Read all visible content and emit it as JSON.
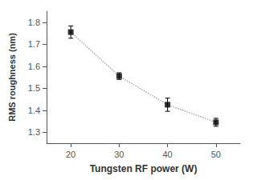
{
  "chart_data": {
    "type": "line",
    "xlabel": "Tungsten RF power (W)",
    "ylabel": "RMS roughness (nm)",
    "x": [
      20,
      30,
      40,
      50
    ],
    "series": [
      {
        "type": "line",
        "color": "#aaaaaa",
        "line_style": "dotted",
        "marker": "none",
        "values": [
          1.755,
          1.555,
          1.425,
          1.345
        ]
      },
      {
        "type": "scatter",
        "color": "black",
        "marker": "square",
        "values": [
          1.755,
          1.555,
          1.425,
          1.345
        ],
        "yerr": [
          0.028,
          0.015,
          0.03,
          0.018
        ]
      }
    ],
    "xlim": [
      15,
      55
    ],
    "ylim": [
      1.25,
      1.85
    ],
    "xticks": [
      20,
      30,
      40,
      50
    ],
    "yticks": [
      1.3,
      1.4,
      1.5,
      1.6,
      1.7,
      1.8
    ],
    "grid": false
  }
}
